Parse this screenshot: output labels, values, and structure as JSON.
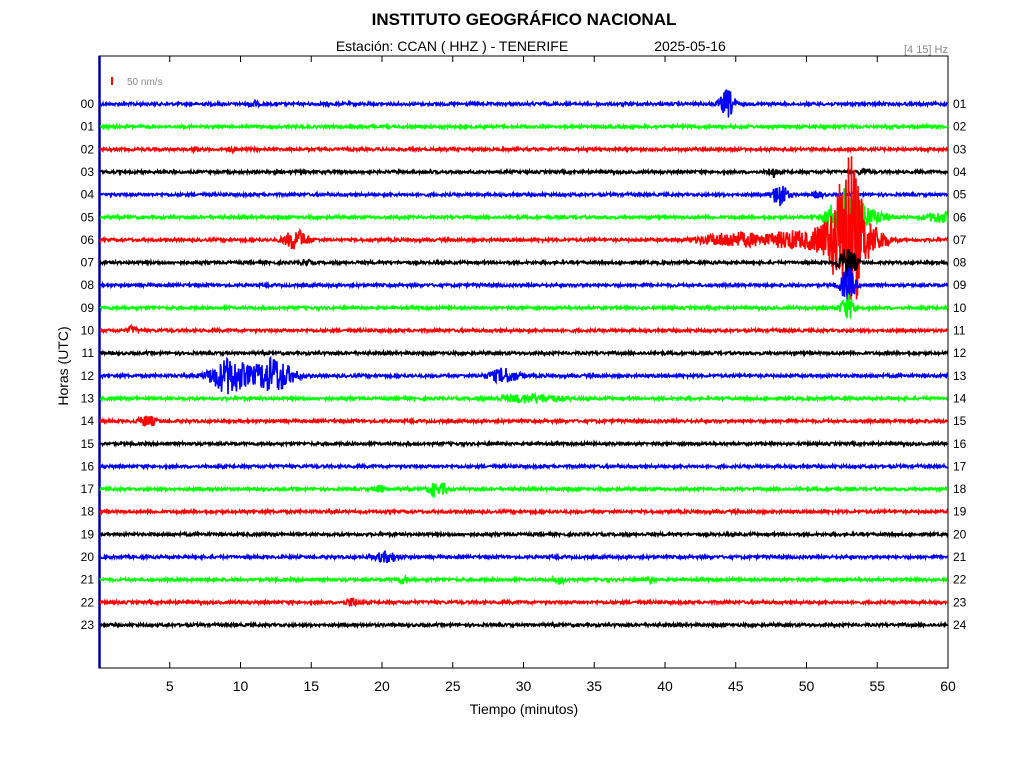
{
  "chart_data": {
    "type": "line",
    "title": "INSTITUTO GEOGRÁFICO NACIONAL",
    "subtitle_station": "Estación:  CCAN ( HHZ ) - TENERIFE",
    "subtitle_date": "2025-05-16",
    "filter_label": "[4 15] Hz",
    "scale_label": "50 nm/s",
    "xlabel": "Tiempo (minutos)",
    "ylabel": "Horas (UTC)",
    "xlim": [
      0,
      60
    ],
    "x_ticks": [
      "5",
      "10",
      "15",
      "20",
      "25",
      "30",
      "35",
      "40",
      "45",
      "50",
      "55",
      "60"
    ],
    "left_hour_labels": [
      "00",
      "01",
      "02",
      "03",
      "04",
      "05",
      "06",
      "07",
      "08",
      "09",
      "10",
      "11",
      "12",
      "13",
      "14",
      "15",
      "16",
      "17",
      "18",
      "19",
      "20",
      "21",
      "22",
      "23"
    ],
    "right_hour_labels": [
      "01",
      "02",
      "03",
      "04",
      "05",
      "06",
      "07",
      "08",
      "09",
      "10",
      "11",
      "12",
      "13",
      "14",
      "15",
      "16",
      "17",
      "18",
      "19",
      "20",
      "21",
      "22",
      "23",
      "24"
    ],
    "series": [
      {
        "hour": "00",
        "color": "#0000ff",
        "events": [
          {
            "t": 44.4,
            "amp": 14,
            "dur": 0.5
          },
          {
            "t": 10.9,
            "amp": 3,
            "dur": 0.3
          }
        ]
      },
      {
        "hour": "01",
        "color": "#00ff00",
        "events": []
      },
      {
        "hour": "02",
        "color": "#ff0000",
        "events": [
          {
            "t": 6.7,
            "amp": 2,
            "dur": 0.2
          },
          {
            "t": 9.3,
            "amp": 2,
            "dur": 0.2
          }
        ]
      },
      {
        "hour": "03",
        "color": "#000000",
        "events": [
          {
            "t": 47.6,
            "amp": 5,
            "dur": 0.3
          },
          {
            "t": 54.0,
            "amp": 3,
            "dur": 0.3
          }
        ]
      },
      {
        "hour": "04",
        "color": "#0000ff",
        "events": [
          {
            "t": 48.1,
            "amp": 13,
            "dur": 0.5
          },
          {
            "t": 50.8,
            "amp": 3,
            "dur": 0.3
          }
        ]
      },
      {
        "hour": "05",
        "color": "#00ff00",
        "events": [
          {
            "t": 52.9,
            "amp": 32,
            "dur": 1.2
          },
          {
            "t": 55.0,
            "amp": 4,
            "dur": 1.0
          },
          {
            "t": 59.5,
            "amp": 5,
            "dur": 1.0
          }
        ]
      },
      {
        "hour": "06",
        "color": "#ff0000",
        "events": [
          {
            "t": 13.9,
            "amp": 10,
            "dur": 0.8
          },
          {
            "t": 45.0,
            "amp": 7,
            "dur": 2.5
          },
          {
            "t": 49.0,
            "amp": 8,
            "dur": 1.5
          },
          {
            "t": 51.6,
            "amp": 18,
            "dur": 1.2
          },
          {
            "t": 53.0,
            "amp": 85,
            "dur": 0.9
          },
          {
            "t": 54.7,
            "amp": 12,
            "dur": 1.0
          }
        ]
      },
      {
        "hour": "07",
        "color": "#000000",
        "events": [
          {
            "t": 14.6,
            "amp": 3,
            "dur": 0.3
          },
          {
            "t": 52.9,
            "amp": 15,
            "dur": 0.6
          }
        ]
      },
      {
        "hour": "08",
        "color": "#0000ff",
        "events": [
          {
            "t": 52.9,
            "amp": 18,
            "dur": 0.5
          }
        ]
      },
      {
        "hour": "09",
        "color": "#00ff00",
        "events": [
          {
            "t": 52.9,
            "amp": 12,
            "dur": 0.5
          }
        ]
      },
      {
        "hour": "10",
        "color": "#ff0000",
        "events": [
          {
            "t": 2.3,
            "amp": 4,
            "dur": 0.3
          }
        ]
      },
      {
        "hour": "11",
        "color": "#000000",
        "events": []
      },
      {
        "hour": "12",
        "color": "#0000ff",
        "events": [
          {
            "t": 9.2,
            "amp": 18,
            "dur": 1.3
          },
          {
            "t": 12.3,
            "amp": 18,
            "dur": 1.3
          },
          {
            "t": 28.6,
            "amp": 7,
            "dur": 1.0
          }
        ]
      },
      {
        "hour": "13",
        "color": "#00ff00",
        "events": [
          {
            "t": 30.5,
            "amp": 4,
            "dur": 2.0
          }
        ]
      },
      {
        "hour": "14",
        "color": "#ff0000",
        "events": [
          {
            "t": 3.4,
            "amp": 5,
            "dur": 0.6
          }
        ]
      },
      {
        "hour": "15",
        "color": "#000000",
        "events": []
      },
      {
        "hour": "16",
        "color": "#0000ff",
        "events": []
      },
      {
        "hour": "17",
        "color": "#00ff00",
        "events": [
          {
            "t": 19.8,
            "amp": 3,
            "dur": 0.3
          },
          {
            "t": 23.6,
            "amp": 6,
            "dur": 0.4
          },
          {
            "t": 24.3,
            "amp": 5,
            "dur": 0.3
          }
        ]
      },
      {
        "hour": "18",
        "color": "#ff0000",
        "events": []
      },
      {
        "hour": "19",
        "color": "#000000",
        "events": []
      },
      {
        "hour": "20",
        "color": "#0000ff",
        "events": [
          {
            "t": 20.3,
            "amp": 5,
            "dur": 0.8
          }
        ]
      },
      {
        "hour": "21",
        "color": "#00ff00",
        "events": [
          {
            "t": 21.5,
            "amp": 3,
            "dur": 0.4
          },
          {
            "t": 32.5,
            "amp": 3,
            "dur": 0.4
          },
          {
            "t": 39.0,
            "amp": 2,
            "dur": 0.3
          }
        ]
      },
      {
        "hour": "22",
        "color": "#ff0000",
        "events": [
          {
            "t": 17.9,
            "amp": 4,
            "dur": 0.4
          }
        ]
      },
      {
        "hour": "23",
        "color": "#000000",
        "events": []
      }
    ]
  }
}
